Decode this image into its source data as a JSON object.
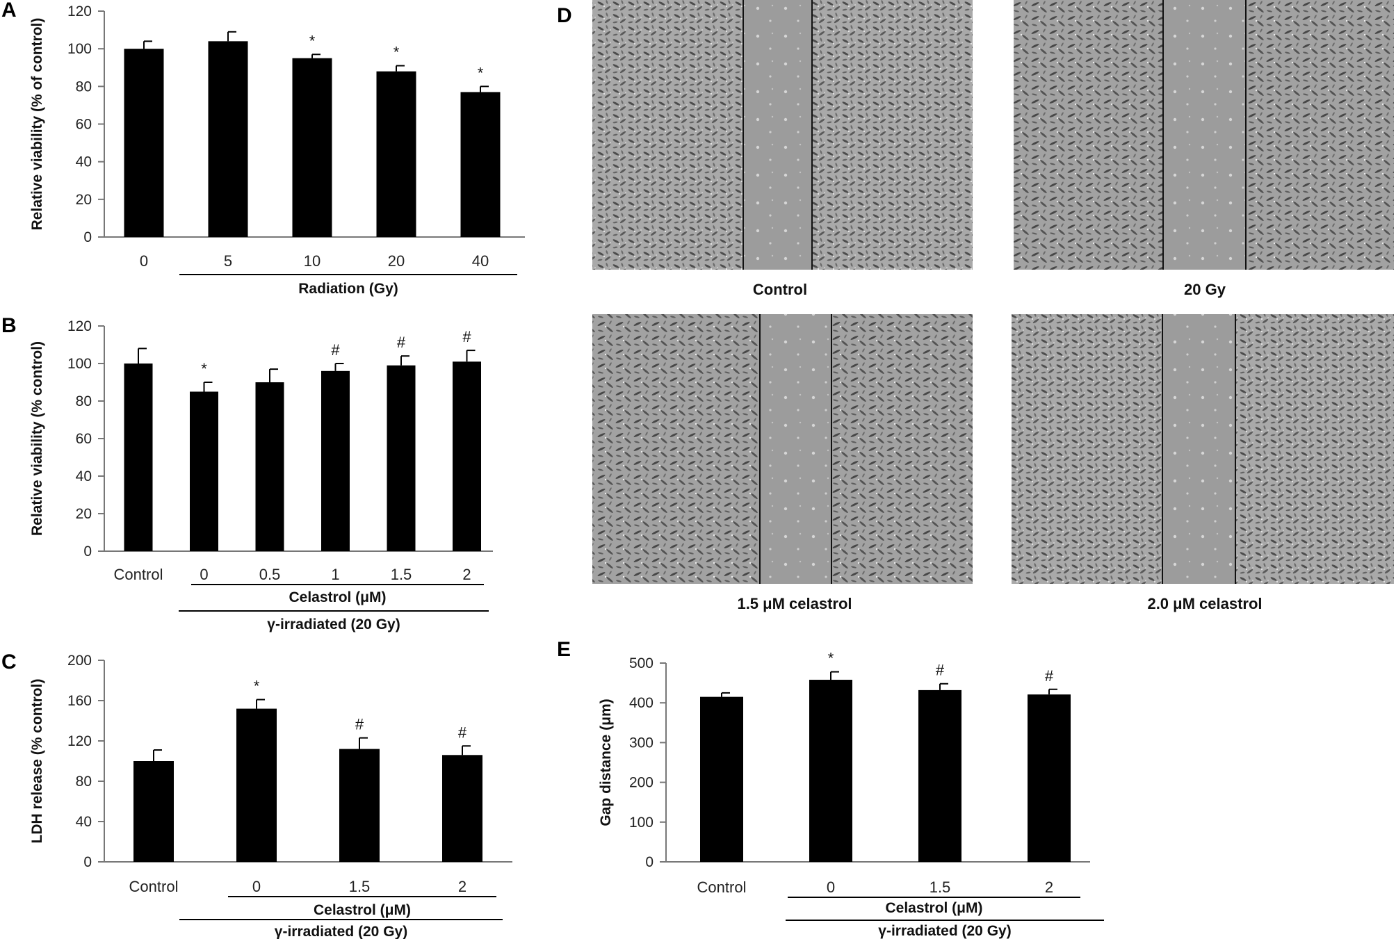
{
  "panels": {
    "A": {
      "label": "A"
    },
    "B": {
      "label": "B"
    },
    "C": {
      "label": "C"
    },
    "D": {
      "label": "D"
    },
    "E": {
      "label": "E"
    }
  },
  "micrographs": [
    {
      "id": "control",
      "caption": "Control"
    },
    {
      "id": "20gy",
      "caption": "20 Gy"
    },
    {
      "id": "1_5",
      "caption": "1.5 μM celastrol"
    },
    {
      "id": "2_0",
      "caption": "2.0 μM celastrol"
    }
  ],
  "chart_data": [
    {
      "panel": "A",
      "type": "bar",
      "ylabel": "Relative viability (% of control)",
      "xlabel": "",
      "ylim": [
        0,
        120
      ],
      "yticks": [
        0,
        20,
        40,
        60,
        80,
        100,
        120
      ],
      "categories": [
        "0",
        "5",
        "10",
        "20",
        "40"
      ],
      "values": [
        100,
        104,
        95,
        88,
        77
      ],
      "errors": [
        4,
        5,
        2,
        3,
        3
      ],
      "markers": [
        "",
        "",
        "*",
        "*",
        "*"
      ],
      "groups": [
        {
          "label": "Radiation (Gy)",
          "from": 1,
          "to": 4
        }
      ],
      "color": "#000000"
    },
    {
      "panel": "B",
      "type": "bar",
      "ylabel": "Relative viability (% control)",
      "xlabel": "",
      "ylim": [
        0,
        120
      ],
      "yticks": [
        0,
        20,
        40,
        60,
        80,
        100,
        120
      ],
      "categories": [
        "Control",
        "0",
        "0.5",
        "1",
        "1.5",
        "2"
      ],
      "values": [
        100,
        85,
        90,
        96,
        99,
        101
      ],
      "errors": [
        8,
        5,
        7,
        4,
        5,
        6
      ],
      "markers": [
        "",
        "*",
        "",
        "#",
        "#",
        "#"
      ],
      "groups": [
        {
          "label": "Celastrol (μM)",
          "from": 1,
          "to": 5
        },
        {
          "label": "γ-irradiated (20 Gy)",
          "from": 1,
          "to": 5
        }
      ],
      "color": "#000000"
    },
    {
      "panel": "C",
      "type": "bar",
      "ylabel": "LDH release (% control)",
      "xlabel": "",
      "ylim": [
        0,
        200
      ],
      "yticks": [
        0,
        40,
        80,
        120,
        160,
        200
      ],
      "categories": [
        "Control",
        "0",
        "1.5",
        "2"
      ],
      "values": [
        100,
        152,
        112,
        106
      ],
      "errors": [
        11,
        9,
        11,
        9
      ],
      "markers": [
        "",
        "*",
        "#",
        "#"
      ],
      "groups": [
        {
          "label": "Celastrol (μM)",
          "from": 1,
          "to": 3
        },
        {
          "label": "γ-irradiated (20 Gy)",
          "from": 1,
          "to": 3
        }
      ],
      "color": "#000000"
    },
    {
      "panel": "E",
      "type": "bar",
      "ylabel": "Gap distance (μm)",
      "xlabel": "",
      "ylim": [
        0,
        500
      ],
      "yticks": [
        0,
        100,
        200,
        300,
        400,
        500
      ],
      "categories": [
        "Control",
        "0",
        "1.5",
        "2"
      ],
      "values": [
        415,
        458,
        432,
        421
      ],
      "errors": [
        10,
        20,
        16,
        13
      ],
      "markers": [
        "",
        "*",
        "#",
        "#"
      ],
      "groups": [
        {
          "label": "Celastrol (μM)",
          "from": 1,
          "to": 3
        },
        {
          "label": "γ-irradiated (20 Gy)",
          "from": 1,
          "to": 3
        }
      ],
      "color": "#000000"
    }
  ]
}
